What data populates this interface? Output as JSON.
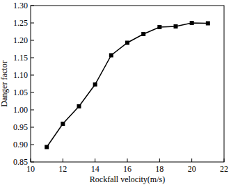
{
  "chart_data": {
    "type": "line",
    "x_label": "Rockfall velocity(m/s)",
    "y_label": "Danger factor",
    "x": [
      11,
      12,
      13,
      14,
      15,
      16,
      17,
      18,
      19,
      20,
      21
    ],
    "values": [
      0.893,
      0.96,
      1.01,
      1.073,
      1.157,
      1.193,
      1.218,
      1.238,
      1.24,
      1.25,
      1.249
    ],
    "color": "#000000",
    "marker": "square",
    "line_style": "solid",
    "grid": false,
    "xlim": [
      10,
      22
    ],
    "xticks": [
      10,
      12,
      14,
      16,
      18,
      20,
      22
    ],
    "ylim": [
      0.85,
      1.3
    ],
    "yticks": [
      0.85,
      {
        "value": 0.9,
        "label": "0.90"
      },
      0.95,
      {
        "value": 1.0,
        "label": "1.00"
      },
      1.05,
      {
        "value": 1.1,
        "label": "1.10"
      },
      1.15,
      {
        "value": 1.2,
        "label": "1.20"
      },
      1.25,
      {
        "value": 1.3,
        "label": "1.30"
      }
    ]
  }
}
